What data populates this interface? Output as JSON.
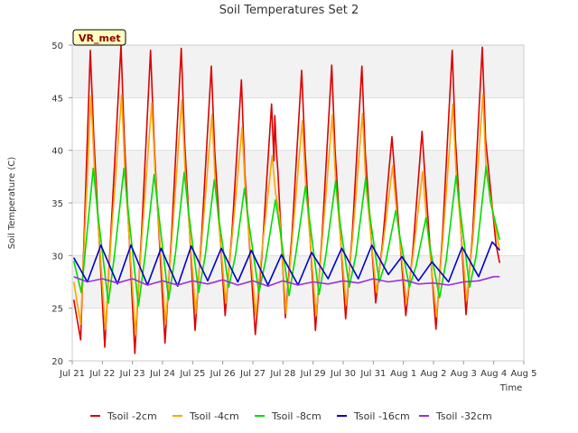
{
  "chart_data": {
    "type": "line",
    "title": "Soil Temperatures Set 2",
    "xlabel": "Time",
    "ylabel": "Soil Temperature (C)",
    "annotation": "VR_met",
    "ylim": [
      20,
      50
    ],
    "yticks": [
      20,
      25,
      30,
      35,
      40,
      45,
      50
    ],
    "xlim": [
      0,
      15
    ],
    "xticks": [
      {
        "pos": 0,
        "label": "Jul 21"
      },
      {
        "pos": 1,
        "label": "Jul 22"
      },
      {
        "pos": 2,
        "label": "Jul 23"
      },
      {
        "pos": 3,
        "label": "Jul 24"
      },
      {
        "pos": 4,
        "label": "Jul 25"
      },
      {
        "pos": 5,
        "label": "Jul 26"
      },
      {
        "pos": 6,
        "label": "Jul 27"
      },
      {
        "pos": 7,
        "label": "Jul 28"
      },
      {
        "pos": 8,
        "label": "Jul 29"
      },
      {
        "pos": 9,
        "label": "Jul 30"
      },
      {
        "pos": 10,
        "label": "Jul 31"
      },
      {
        "pos": 11,
        "label": "Aug 1"
      },
      {
        "pos": 12,
        "label": "Aug 2"
      },
      {
        "pos": 13,
        "label": "Aug 3"
      },
      {
        "pos": 14,
        "label": "Aug 4"
      },
      {
        "pos": 15,
        "label": "Aug 5"
      }
    ],
    "grid": true,
    "legend_position": "bottom",
    "series": [
      {
        "name": "Tsoil -2cm",
        "color": "#dd0000",
        "x": [
          0.05,
          0.28,
          0.6,
          0.72,
          1.08,
          1.28,
          1.62,
          1.73,
          2.08,
          2.3,
          2.6,
          2.73,
          3.08,
          3.3,
          3.62,
          3.73,
          4.08,
          4.3,
          4.62,
          4.73,
          5.08,
          5.3,
          5.62,
          5.73,
          6.08,
          6.3,
          6.62,
          6.7,
          6.73,
          6.78,
          6.83,
          7.08,
          7.3,
          7.62,
          7.73,
          8.08,
          8.3,
          8.62,
          8.73,
          9.08,
          9.3,
          9.62,
          9.73,
          10.08,
          10.3,
          10.62,
          10.73,
          11.08,
          11.3,
          11.62,
          11.73,
          12.08,
          12.3,
          12.62,
          12.73,
          13.08,
          13.3,
          13.62,
          13.73,
          14.08,
          14.2
        ],
        "y": [
          25.8,
          22,
          49.5,
          41,
          21.3,
          32,
          50,
          41,
          20.7,
          32,
          49.5,
          40,
          21.7,
          32,
          49.7,
          41,
          22.9,
          32,
          48,
          40,
          24.3,
          32,
          46.7,
          38,
          22.5,
          30,
          44.4,
          39,
          43.3,
          40,
          38,
          24.1,
          32,
          47.6,
          40,
          22.9,
          32,
          48.1,
          40,
          24,
          32,
          48,
          40,
          25.5,
          31,
          41.3,
          37,
          24.3,
          30,
          41.8,
          37,
          23,
          32,
          49.5,
          41,
          24.4,
          32,
          49.8,
          41,
          31,
          29.3
        ]
      },
      {
        "name": "Tsoil -4cm",
        "color": "#ffa500",
        "x": [
          0.05,
          0.28,
          0.62,
          0.74,
          1.1,
          1.3,
          1.64,
          1.75,
          2.1,
          2.32,
          2.64,
          2.75,
          3.1,
          3.32,
          3.64,
          3.75,
          4.1,
          4.32,
          4.64,
          4.75,
          5.1,
          5.32,
          5.64,
          5.75,
          6.1,
          6.32,
          6.64,
          6.75,
          6.88,
          7.1,
          7.32,
          7.64,
          7.75,
          8.1,
          8.32,
          8.64,
          8.75,
          9.1,
          9.32,
          9.64,
          9.75,
          10.1,
          10.32,
          10.64,
          10.75,
          11.1,
          11.32,
          11.64,
          11.75,
          12.1,
          12.32,
          12.64,
          12.75,
          13.1,
          13.32,
          13.64,
          13.75,
          14.1,
          14.2
        ],
        "y": [
          27.5,
          23.5,
          45.2,
          38,
          23,
          32,
          45.3,
          38,
          22.5,
          32,
          44.5,
          38,
          23.5,
          32,
          44.8,
          38,
          24.5,
          32,
          43.4,
          37,
          25.5,
          32,
          42.2,
          36,
          24.3,
          31,
          39.5,
          36,
          34,
          24.5,
          32,
          42.8,
          37,
          24.3,
          32,
          43.4,
          37,
          25.3,
          32,
          43.5,
          37,
          26.5,
          31,
          38.5,
          35,
          25.5,
          30,
          38,
          34,
          24.2,
          32,
          44.4,
          38,
          25.7,
          32,
          45.3,
          38,
          32,
          30.5
        ]
      },
      {
        "name": "Tsoil -8cm",
        "color": "#00dd00",
        "x": [
          0.05,
          0.3,
          0.7,
          0.85,
          1.2,
          1.4,
          1.72,
          1.87,
          2.2,
          2.42,
          2.72,
          2.87,
          3.2,
          3.42,
          3.72,
          3.87,
          4.2,
          4.42,
          4.72,
          4.87,
          5.2,
          5.42,
          5.72,
          5.87,
          6.2,
          6.42,
          6.75,
          6.9,
          7.2,
          7.42,
          7.75,
          7.9,
          8.2,
          8.42,
          8.75,
          8.9,
          9.2,
          9.42,
          9.75,
          9.9,
          10.2,
          10.42,
          10.75,
          10.9,
          11.2,
          11.42,
          11.75,
          11.9,
          12.2,
          12.42,
          12.75,
          12.9,
          13.2,
          13.42,
          13.75,
          13.9,
          14.2
        ],
        "y": [
          29.5,
          26.5,
          38.3,
          34,
          25.5,
          30,
          38.3,
          34,
          25.2,
          30,
          37.7,
          34,
          25.8,
          30,
          37.9,
          34,
          26.5,
          30,
          37.2,
          33.5,
          27,
          30,
          36.4,
          33,
          26.5,
          29.5,
          35.3,
          32.5,
          26.2,
          30,
          36.6,
          33,
          26.3,
          30,
          37.1,
          33,
          27,
          30,
          37.4,
          33.5,
          27.5,
          29.5,
          34.3,
          31.5,
          27,
          29,
          33.6,
          30.5,
          26,
          29.5,
          37.6,
          34,
          27,
          30,
          38.5,
          35,
          31.5
        ]
      },
      {
        "name": "Tsoil -16cm",
        "color": "#0000cc",
        "x": [
          0.05,
          0.5,
          0.95,
          1.5,
          1.95,
          2.5,
          2.95,
          3.5,
          3.95,
          4.5,
          4.95,
          5.5,
          5.95,
          6.5,
          6.95,
          7.5,
          7.95,
          8.5,
          8.95,
          9.5,
          9.95,
          10.5,
          10.95,
          11.5,
          11.95,
          12.5,
          12.95,
          13.5,
          13.95,
          14.2
        ],
        "y": [
          29.8,
          27.5,
          31,
          27.3,
          31,
          27.2,
          30.7,
          27.1,
          30.9,
          27.6,
          30.7,
          27.5,
          30.5,
          27.2,
          30.1,
          27.2,
          30.3,
          27.8,
          30.7,
          27.8,
          31,
          28.2,
          29.9,
          27.6,
          29.4,
          27.5,
          30.8,
          28,
          31.3,
          30.5
        ]
      },
      {
        "name": "Tsoil -32cm",
        "color": "#9b30d9",
        "x": [
          0.05,
          0.5,
          1.0,
          1.5,
          2.0,
          2.5,
          3.0,
          3.5,
          4.0,
          4.5,
          5.0,
          5.5,
          6.0,
          6.5,
          7.0,
          7.5,
          8.0,
          8.5,
          9.0,
          9.5,
          10.0,
          10.5,
          11.0,
          11.5,
          12.0,
          12.5,
          13.0,
          13.5,
          14.0,
          14.2
        ],
        "y": [
          28,
          27.5,
          27.8,
          27.4,
          27.8,
          27.2,
          27.6,
          27.2,
          27.6,
          27.3,
          27.7,
          27.2,
          27.6,
          27.1,
          27.6,
          27.2,
          27.5,
          27.3,
          27.6,
          27.4,
          27.8,
          27.5,
          27.7,
          27.3,
          27.4,
          27.2,
          27.5,
          27.6,
          28,
          28
        ]
      }
    ]
  }
}
